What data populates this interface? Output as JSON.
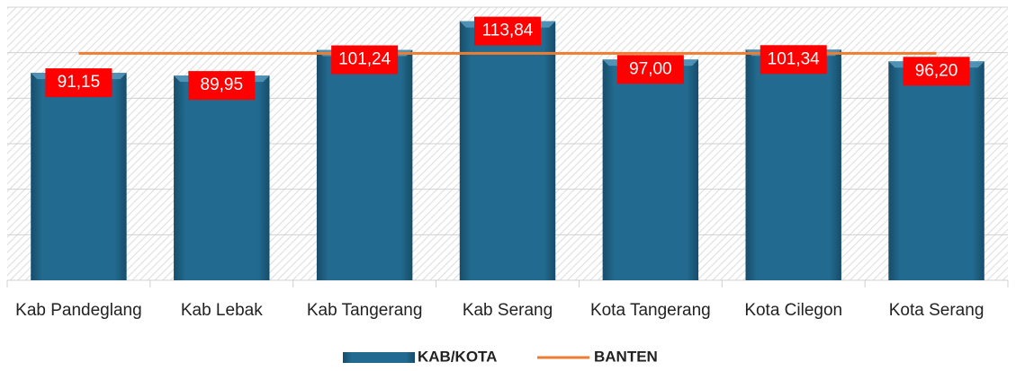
{
  "chart_data": {
    "type": "bar",
    "categories": [
      "Kab Pandeglang",
      "Kab Lebak",
      "Kab Tangerang",
      "Kab Serang",
      "Kota Tangerang",
      "Kota Cilegon",
      "Kota Serang"
    ],
    "series": [
      {
        "name": "KAB/KOTA",
        "type": "bar",
        "color": "#1f6487",
        "values": [
          91.15,
          89.95,
          101.24,
          113.84,
          97.0,
          101.34,
          96.2
        ],
        "value_labels": [
          "91,15",
          "89,95",
          "101,24",
          "113,84",
          "97,00",
          "101,34",
          "96,20"
        ]
      },
      {
        "name": "BANTEN",
        "type": "line",
        "color": "#ed7d31",
        "values": [
          99.7,
          99.7,
          99.7,
          99.7,
          99.7,
          99.7,
          99.7
        ]
      }
    ],
    "ylim": [
      0,
      120
    ],
    "yticks": [
      0,
      20,
      40,
      60,
      80,
      100,
      120
    ],
    "grid": true
  }
}
